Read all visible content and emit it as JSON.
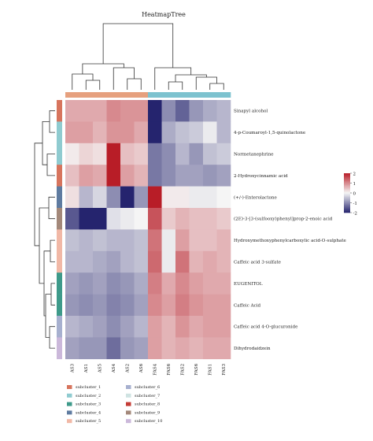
{
  "chart_data": {
    "type": "heatmap",
    "title": "HeatmapTree",
    "columns": [
      "AS3",
      "AS1",
      "AS5",
      "AS4",
      "AS2",
      "AS6",
      "FAS4",
      "FAS6",
      "FAS2",
      "FAS6",
      "FAS1",
      "FAS3"
    ],
    "column_groups": [
      0,
      0,
      0,
      0,
      0,
      0,
      1,
      1,
      1,
      1,
      1,
      1
    ],
    "column_group_colors": [
      "#e6a07e",
      "#7dc2cf"
    ],
    "rows": [
      "Sinapyl alcohol",
      "4-p-Coumaroyl-1,5-quinolactone",
      "Normetanephrine",
      "2-Hydroxycinnamic acid",
      "(+/-)-Enterolactone",
      "(2E)-3-[3-(sulfooxy)phenyl]prop-2-enoic acid",
      "Hydroxymethoxyphenylcarboxylic acid-O-sulphate",
      "Caffeic acid 3-sulfate",
      "EUGENITOL",
      "Caffeic Acid",
      "Caffeic acid 4-O-glucuronide",
      "Dihydrodaidzein"
    ],
    "row_subclusters": [
      1,
      2,
      2,
      1,
      4,
      9,
      5,
      5,
      3,
      3,
      6,
      10
    ],
    "values": [
      [
        0.7,
        0.7,
        0.7,
        1.0,
        0.9,
        0.9,
        -2.4,
        -1.0,
        -1.4,
        -0.9,
        -0.7,
        -0.6
      ],
      [
        0.8,
        0.8,
        0.6,
        0.9,
        0.9,
        0.7,
        -2.2,
        -0.7,
        -0.5,
        -0.4,
        -0.1,
        -0.6
      ],
      [
        0.1,
        0.3,
        0.2,
        2.2,
        0.5,
        0.4,
        -1.2,
        -1.0,
        -0.6,
        -0.9,
        -0.5,
        -0.4
      ],
      [
        0.5,
        0.8,
        0.7,
        2.0,
        0.8,
        0.6,
        -1.2,
        -1.0,
        -0.8,
        -0.8,
        -0.9,
        -0.8
      ],
      [
        0.2,
        -0.6,
        -0.3,
        -1.0,
        -2.4,
        -0.9,
        2.4,
        0.1,
        0.1,
        -0.1,
        -0.1,
        0.0
      ],
      [
        -1.5,
        -2.6,
        -2.4,
        -0.2,
        -0.1,
        0.0,
        1.5,
        0.4,
        0.6,
        0.5,
        0.5,
        0.4
      ],
      [
        -0.5,
        -0.6,
        -0.5,
        -0.6,
        -0.6,
        -0.5,
        1.2,
        -0.1,
        0.8,
        0.5,
        0.5,
        0.6
      ],
      [
        -0.6,
        -0.6,
        -0.7,
        -0.8,
        -0.6,
        -0.5,
        1.3,
        -0.1,
        1.2,
        0.6,
        0.7,
        0.6
      ],
      [
        -0.8,
        -0.9,
        -0.8,
        -1.0,
        -0.9,
        -0.7,
        1.1,
        0.7,
        1.0,
        0.8,
        0.7,
        0.7
      ],
      [
        -0.9,
        -1.0,
        -0.9,
        -1.1,
        -1.0,
        -0.8,
        1.0,
        0.8,
        1.1,
        0.9,
        0.8,
        0.8
      ],
      [
        -0.6,
        -0.7,
        -0.8,
        -1.0,
        -0.8,
        -0.6,
        0.8,
        0.6,
        0.9,
        0.7,
        0.8,
        0.8
      ],
      [
        -0.8,
        -0.9,
        -0.9,
        -1.3,
        -0.9,
        -0.8,
        0.8,
        0.6,
        0.7,
        0.6,
        0.7,
        0.7
      ]
    ],
    "color_scale": {
      "min": -2,
      "max": 2,
      "ticks": [
        "2",
        "1",
        "0",
        "-1",
        "-2"
      ],
      "low": "#25246e",
      "mid": "#f5f5f5",
      "high": "#b81d27"
    },
    "legend": {
      "placement": "bottom-left",
      "items": [
        {
          "id": 1,
          "label": "subcluster_1",
          "color": "#d7745d"
        },
        {
          "id": 2,
          "label": "subcluster_2",
          "color": "#8fcbd0"
        },
        {
          "id": 3,
          "label": "subcluster_3",
          "color": "#3e9a8a"
        },
        {
          "id": 4,
          "label": "subcluster_4",
          "color": "#5f7ba0"
        },
        {
          "id": 5,
          "label": "subcluster_5",
          "color": "#f1b8a6"
        },
        {
          "id": 6,
          "label": "subcluster_6",
          "color": "#a7b0cf"
        },
        {
          "id": 7,
          "label": "subcluster_7",
          "color": "#cfe3e2"
        },
        {
          "id": 8,
          "label": "subcluster_8",
          "color": "#c43c36"
        },
        {
          "id": 9,
          "label": "subcluster_9",
          "color": "#a3887a"
        },
        {
          "id": 10,
          "label": "subcluster_10",
          "color": "#cbb8da"
        }
      ]
    }
  }
}
